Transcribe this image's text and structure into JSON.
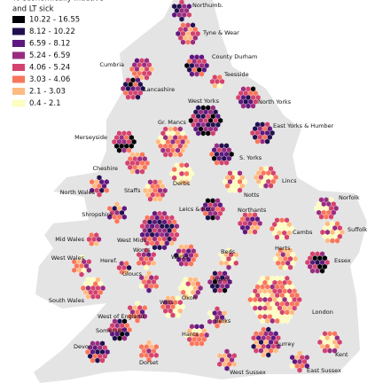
{
  "legend": {
    "title_lines": [
      "% economically inactive",
      "and LT sick"
    ],
    "items": [
      {
        "label": "10.22 - 16.55",
        "color": "#000004"
      },
      {
        "label": "8.12 - 10.22",
        "color": "#221150"
      },
      {
        "label": "6.59 - 8.12",
        "color": "#5f187f"
      },
      {
        "label": "5.24 - 6.59",
        "color": "#982d80"
      },
      {
        "label": "4.06 - 5.24",
        "color": "#d3436e"
      },
      {
        "label": "3.03 - 4.06",
        "color": "#f8765c"
      },
      {
        "label": "2.1 - 3.03",
        "color": "#febb81"
      },
      {
        "label": "0.4 - 2.1",
        "color": "#fcfdbf"
      }
    ]
  },
  "regions": [
    "Northumb.",
    "Tyne & Wear",
    "County Durham",
    "Cumbria",
    "Teesside",
    "Lancashire",
    "West Yorks",
    "North Yorks",
    "Gr. Mancs",
    "Merseyside",
    "East Yorks & Humber",
    "S. Yorks",
    "Cheshire",
    "Derbs",
    "Lincs",
    "North Wales",
    "Staffs",
    "Notts",
    "Norfolk",
    "Leics & Rut.",
    "Northants",
    "Shropshire",
    "Cambs",
    "Suffolk",
    "Mid Wales",
    "West Mids",
    "Beds",
    "Herts",
    "West Wales",
    "Worcs",
    "Warks",
    "Essex",
    "Heref.",
    "Gloucs",
    "Bucks",
    "South Wales",
    "Wilts",
    "Oxon",
    "London",
    "West of England",
    "Somerset",
    "Hants",
    "Berks",
    "Surrey",
    "Devon",
    "Kent",
    "Dorset",
    "West Sussex",
    "East Sussex"
  ]
}
